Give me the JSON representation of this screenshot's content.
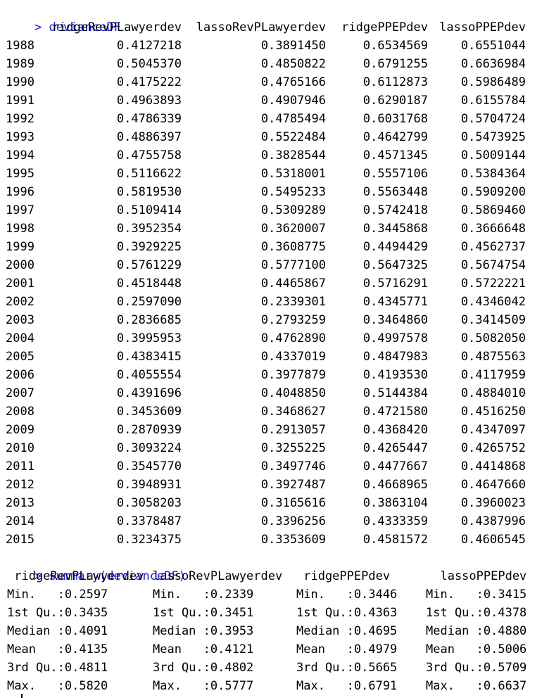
{
  "console": {
    "prompt": ">",
    "command1": "devianceDF",
    "command2": "summary(devianceDF)"
  },
  "table": {
    "columns": [
      "ridgeRevPLawyerdev",
      "lassoRevPLawyerdev",
      "ridgePPEPdev",
      "lassoPPEPdev"
    ],
    "rows": [
      [
        "1988",
        "0.4127218",
        "0.3891450",
        "0.6534569",
        "0.6551044"
      ],
      [
        "1989",
        "0.5045370",
        "0.4850822",
        "0.6791255",
        "0.6636984"
      ],
      [
        "1990",
        "0.4175222",
        "0.4765166",
        "0.6112873",
        "0.5986489"
      ],
      [
        "1991",
        "0.4963893",
        "0.4907946",
        "0.6290187",
        "0.6155784"
      ],
      [
        "1992",
        "0.4786339",
        "0.4785494",
        "0.6031768",
        "0.5704724"
      ],
      [
        "1993",
        "0.4886397",
        "0.5522484",
        "0.4642799",
        "0.5473925"
      ],
      [
        "1994",
        "0.4755758",
        "0.3828544",
        "0.4571345",
        "0.5009144"
      ],
      [
        "1995",
        "0.5116622",
        "0.5318001",
        "0.5557106",
        "0.5384364"
      ],
      [
        "1996",
        "0.5819530",
        "0.5495233",
        "0.5563448",
        "0.5909200"
      ],
      [
        "1997",
        "0.5109414",
        "0.5309289",
        "0.5742418",
        "0.5869460"
      ],
      [
        "1998",
        "0.3952354",
        "0.3620007",
        "0.3445868",
        "0.3666648"
      ],
      [
        "1999",
        "0.3929225",
        "0.3608775",
        "0.4494429",
        "0.4562737"
      ],
      [
        "2000",
        "0.5761229",
        "0.5777100",
        "0.5647325",
        "0.5674754"
      ],
      [
        "2001",
        "0.4518448",
        "0.4465867",
        "0.5716291",
        "0.5722221"
      ],
      [
        "2002",
        "0.2597090",
        "0.2339301",
        "0.4345771",
        "0.4346042"
      ],
      [
        "2003",
        "0.2836685",
        "0.2793259",
        "0.3464860",
        "0.3414509"
      ],
      [
        "2004",
        "0.3995953",
        "0.4762890",
        "0.4997578",
        "0.5082050"
      ],
      [
        "2005",
        "0.4383415",
        "0.4337019",
        "0.4847983",
        "0.4875563"
      ],
      [
        "2006",
        "0.4055554",
        "0.3977879",
        "0.4193530",
        "0.4117959"
      ],
      [
        "2007",
        "0.4391696",
        "0.4048850",
        "0.5144384",
        "0.4884010"
      ],
      [
        "2008",
        "0.3453609",
        "0.3468627",
        "0.4721580",
        "0.4516250"
      ],
      [
        "2009",
        "0.2870939",
        "0.2913057",
        "0.4368420",
        "0.4347097"
      ],
      [
        "2010",
        "0.3093224",
        "0.3255225",
        "0.4265447",
        "0.4265752"
      ],
      [
        "2011",
        "0.3545770",
        "0.3497746",
        "0.4477667",
        "0.4414868"
      ],
      [
        "2012",
        "0.3948931",
        "0.3927487",
        "0.4668965",
        "0.4647660"
      ],
      [
        "2013",
        "0.3058203",
        "0.3165616",
        "0.3863104",
        "0.3960023"
      ],
      [
        "2014",
        "0.3378487",
        "0.3396256",
        "0.4333359",
        "0.4387996"
      ],
      [
        "2015",
        "0.3234375",
        "0.3353609",
        "0.4581572",
        "0.4606545"
      ]
    ]
  },
  "summary": {
    "headers": [
      " ridgeRevPLawyerdev",
      "lassoRevPLawyerdev",
      " ridgePPEPdev",
      "  lassoPPEPdev"
    ],
    "rows": [
      [
        "Min.   :0.2597",
        "Min.   :0.2339",
        "Min.   :0.3446",
        "Min.   :0.3415"
      ],
      [
        "1st Qu.:0.3435",
        "1st Qu.:0.3451",
        "1st Qu.:0.4363",
        "1st Qu.:0.4378"
      ],
      [
        "Median :0.4091",
        "Median :0.3953",
        "Median :0.4695",
        "Median :0.4880"
      ],
      [
        "Mean   :0.4135",
        "Mean   :0.4121",
        "Mean   :0.4979",
        "Mean   :0.5006"
      ],
      [
        "3rd Qu.:0.4811",
        "3rd Qu.:0.4802",
        "3rd Qu.:0.5665",
        "3rd Qu.:0.5709"
      ],
      [
        "Max.   :0.5820",
        "Max.   :0.5777",
        "Max.   :0.6791",
        "Max.   :0.6637"
      ]
    ]
  },
  "colors": {
    "command": "#1a1aff",
    "text": "#000000",
    "background": "#ffffff"
  }
}
